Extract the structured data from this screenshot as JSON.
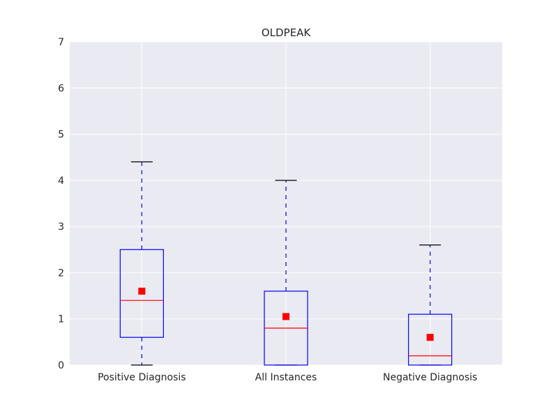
{
  "chart_data": {
    "type": "box",
    "title": "OLDPEAK",
    "xlabel": "",
    "ylabel": "",
    "ylim": [
      0,
      7
    ],
    "yticks": [
      0,
      1,
      2,
      3,
      4,
      5,
      6,
      7
    ],
    "grid": true,
    "categories": [
      "Positive Diagnosis",
      "All Instances",
      "Negative Diagnosis"
    ],
    "boxes": [
      {
        "category": "Positive Diagnosis",
        "whisker_low": 0,
        "q1": 0.6,
        "median": 1.4,
        "q3": 2.5,
        "whisker_high": 4.4,
        "mean": 1.6
      },
      {
        "category": "All Instances",
        "whisker_low": 0,
        "q1": 0,
        "median": 0.8,
        "q3": 1.6,
        "whisker_high": 4.0,
        "mean": 1.05
      },
      {
        "category": "Negative Diagnosis",
        "whisker_low": 0,
        "q1": 0,
        "median": 0.2,
        "q3": 1.1,
        "whisker_high": 2.6,
        "mean": 0.6
      }
    ],
    "colors": {
      "plot_background": "#eaeaf2",
      "grid": "#ffffff",
      "box": "#0000ff",
      "whisker": "#0000ff",
      "cap": "#000000",
      "median": "#ff0000",
      "mean_marker": "#ff0000"
    }
  }
}
